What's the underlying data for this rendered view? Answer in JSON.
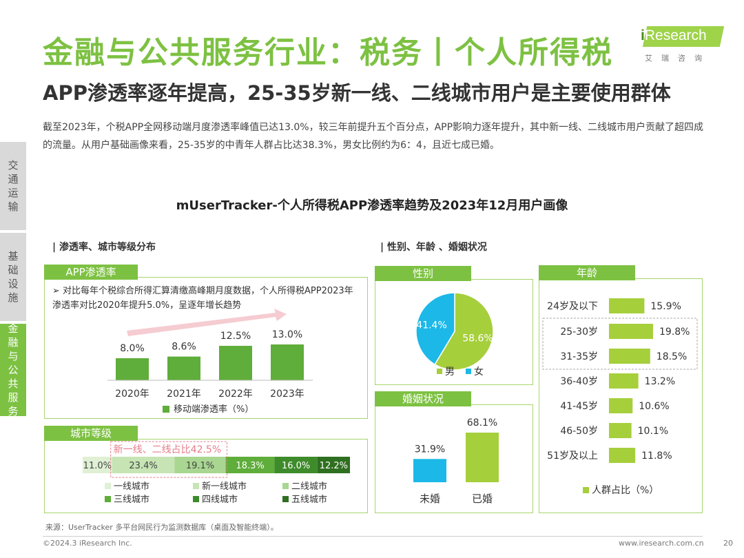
{
  "header": {
    "title": "金融与公共服务行业：税务丨个人所得税",
    "subtitle": "APP渗透率逐年提高，25-35岁新一线、二线城市用户是主要使用群体",
    "intro": "截至2023年，个税APP全网移动端月度渗透率峰值已达13.0%，较三年前提升五个百分点，APP影响力逐年提升，其中新一线、二线城市用户贡献了超四成的流量。从用户基础画像来看，25-35岁的中青年人群占比达38.3%，男女比例约为6：4，且近七成已婚。"
  },
  "logo": {
    "i": "i",
    "word": "Research",
    "sub": "艾瑞咨询"
  },
  "sidebar": {
    "items": [
      {
        "label": "交通运输",
        "active": false
      },
      {
        "label": "基础设施",
        "active": false
      },
      {
        "label": "金融与公共服务",
        "active": true
      }
    ]
  },
  "main": {
    "chart_title": "mUserTracker-个人所得税APP渗透率趋势及2023年12月用户画像",
    "left_section": "| 渗透率、城市等级分布",
    "right_section": "| 性别、年龄 、婚姻状况",
    "note": "➢  对比每年个税综合所得汇算清缴高峰期月度数据，个人所得税APP2023年渗透率对比2020年提升5.0%，呈逐年增长趋势"
  },
  "colors": {
    "brand_green": "#7dc142",
    "bar_green": "#5fad3a",
    "lime": "#a6cf3c",
    "cyan": "#1cb8e8",
    "pink": "#e57c8a"
  },
  "chart_data": [
    {
      "id": "penetration",
      "tag": "APP渗透率",
      "type": "bar",
      "categories": [
        "2020年",
        "2021年",
        "2022年",
        "2023年"
      ],
      "values": [
        8.0,
        8.6,
        12.5,
        13.0
      ],
      "value_labels": [
        "8.0%",
        "8.6%",
        "12.5%",
        "13.0%"
      ],
      "legend": "移动端渗透率（%）",
      "ylim": [
        0,
        14
      ]
    },
    {
      "id": "city",
      "tag": "城市等级",
      "type": "bar",
      "orientation": "stacked-horizontal",
      "categories": [
        "一线城市",
        "新一线城市",
        "二线城市",
        "三线城市",
        "四线城市",
        "五线城市"
      ],
      "values": [
        11.0,
        23.4,
        19.1,
        18.3,
        16.0,
        12.2
      ],
      "value_labels": [
        "11.0%",
        "23.4%",
        "19.1%",
        "18.3%",
        "16.0%",
        "12.2%"
      ],
      "colors": [
        "#dff0d4",
        "#c6e4b4",
        "#a9d792",
        "#5fad3a",
        "#3e8b2b",
        "#2f6f20"
      ],
      "callout": "新一线、二线占比42.5%"
    },
    {
      "id": "gender",
      "tag": "性别",
      "type": "pie",
      "categories": [
        "男",
        "女"
      ],
      "values": [
        58.6,
        41.4
      ],
      "value_labels": [
        "58.6%",
        "41.4%"
      ],
      "colors": [
        "#a6cf3c",
        "#1cb8e8"
      ]
    },
    {
      "id": "marriage",
      "tag": "婚姻状况",
      "type": "bar",
      "categories": [
        "未婚",
        "已婚"
      ],
      "values": [
        31.9,
        68.1
      ],
      "value_labels": [
        "31.9%",
        "68.1%"
      ],
      "colors": [
        "#1cb8e8",
        "#a6cf3c"
      ]
    },
    {
      "id": "age",
      "tag": "年龄",
      "type": "bar",
      "orientation": "horizontal",
      "categories": [
        "24岁及以下",
        "25-30岁",
        "31-35岁",
        "36-40岁",
        "41-45岁",
        "46-50岁",
        "51岁及以上"
      ],
      "values": [
        15.9,
        19.8,
        18.5,
        13.2,
        10.6,
        10.1,
        11.8
      ],
      "value_labels": [
        "15.9%",
        "19.8%",
        "18.5%",
        "13.2%",
        "10.6%",
        "10.1%",
        "11.8%"
      ],
      "legend": "人群占比（%）",
      "xlim": [
        0,
        20
      ]
    }
  ],
  "footer": {
    "source": "来源：UserTracker 多平台网民行为监测数据库（桌面及智能终端）。",
    "copyright": "©2024.3 iResearch Inc.",
    "website": "www.iresearch.com.cn",
    "page": "20"
  }
}
